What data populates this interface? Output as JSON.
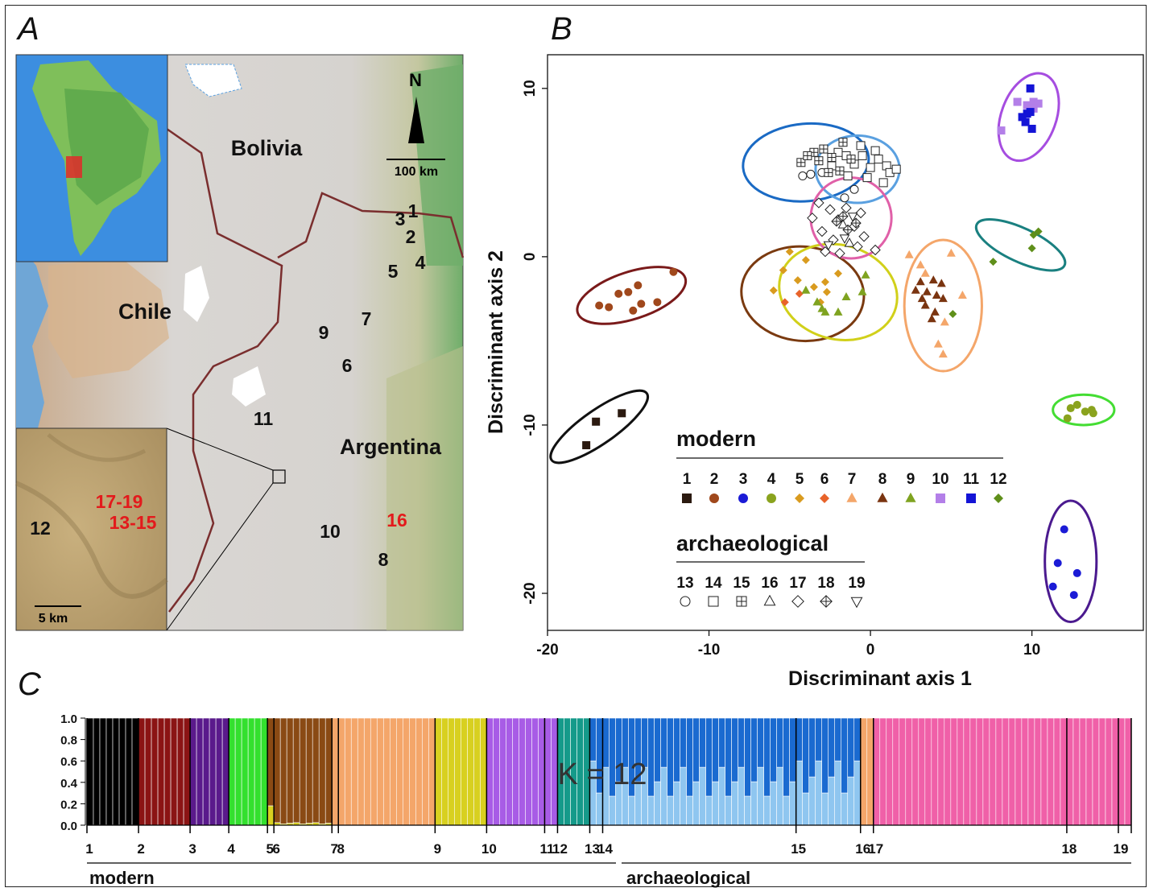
{
  "panels": {
    "a": "A",
    "b": "B",
    "c": "C"
  },
  "map": {
    "countries": [
      "Bolivia",
      "Chile",
      "Argentina"
    ],
    "north": "N",
    "scale": "100 km",
    "inset_scale": "5 km",
    "sites_black": [
      {
        "id": "1",
        "x": 513,
        "y": 270
      },
      {
        "id": "3",
        "x": 497,
        "y": 280
      },
      {
        "id": "2",
        "x": 510,
        "y": 302
      },
      {
        "id": "4",
        "x": 522,
        "y": 334
      },
      {
        "id": "5",
        "x": 488,
        "y": 345
      },
      {
        "id": "7",
        "x": 455,
        "y": 404
      },
      {
        "id": "9",
        "x": 402,
        "y": 421
      },
      {
        "id": "6",
        "x": 431,
        "y": 462
      },
      {
        "id": "11",
        "x": 327,
        "y": 528
      },
      {
        "id": "10",
        "x": 410,
        "y": 668
      },
      {
        "id": "8",
        "x": 476,
        "y": 703
      }
    ],
    "sites_red": [
      {
        "id": "16",
        "x": 493,
        "y": 654
      }
    ],
    "inset_black": [
      {
        "id": "12",
        "x": 50,
        "y": 664
      }
    ],
    "inset_red": [
      {
        "id": "17-19",
        "x": 148,
        "y": 631
      },
      {
        "id": "13-15",
        "x": 165,
        "y": 657
      }
    ],
    "colors": {
      "labels_red": "#e31a1c",
      "border": "#7a2e2e"
    }
  },
  "chart_data": [
    {
      "type": "scatter",
      "xlabel": "Discriminant axis 1",
      "ylabel": "Discriminant axis 2",
      "xlim": [
        -20,
        16.9
      ],
      "ylim": [
        -22.2,
        12.0
      ],
      "xticks": [
        "-20",
        "-10",
        "0",
        "10"
      ],
      "yticks": [
        "10",
        "0",
        "-10",
        "-20"
      ],
      "legend": {
        "modern_title": "modern",
        "archaeological_title": "archaeological",
        "modern": [
          {
            "label": "1",
            "shape": "square",
            "color": "#2b1a10"
          },
          {
            "label": "2",
            "shape": "circle",
            "color": "#a0481c"
          },
          {
            "label": "3",
            "shape": "circle",
            "color": "#1b1bd6"
          },
          {
            "label": "4",
            "shape": "circle",
            "color": "#8aa31e"
          },
          {
            "label": "5",
            "shape": "diamond",
            "color": "#d99b1f"
          },
          {
            "label": "6",
            "shape": "diamond",
            "color": "#e8632a"
          },
          {
            "label": "7",
            "shape": "triangle",
            "color": "#f4a66a"
          },
          {
            "label": "8",
            "shape": "triangle",
            "color": "#7a3410"
          },
          {
            "label": "9",
            "shape": "triangle",
            "color": "#7fa320"
          },
          {
            "label": "10",
            "shape": "square",
            "color": "#b37fe8"
          },
          {
            "label": "11",
            "shape": "square",
            "color": "#1414d6"
          },
          {
            "label": "12",
            "shape": "diamond",
            "color": "#5f8f1a"
          }
        ],
        "archaeological": [
          {
            "label": "13",
            "shape": "open-circle"
          },
          {
            "label": "14",
            "shape": "open-square"
          },
          {
            "label": "15",
            "shape": "boxplus"
          },
          {
            "label": "16",
            "shape": "open-triangle"
          },
          {
            "label": "17",
            "shape": "open-diamond"
          },
          {
            "label": "18",
            "shape": "diamond-plus"
          },
          {
            "label": "19",
            "shape": "open-triangle-down"
          }
        ]
      },
      "ellipses": [
        {
          "group": "1",
          "color": "#111111",
          "cx": -16.8,
          "cy": -10.1,
          "rx": 3.6,
          "ry": 1.0,
          "angle": 35
        },
        {
          "group": "2",
          "color": "#7a1a1a",
          "cx": -14.8,
          "cy": -2.3,
          "rx": 3.5,
          "ry": 1.4,
          "angle": 18
        },
        {
          "group": "3",
          "color": "#4b1a8f",
          "cx": 12.4,
          "cy": -18.1,
          "rx": 1.6,
          "ry": 3.6,
          "angle": 0
        },
        {
          "group": "4",
          "color": "#44dd33",
          "cx": 13.2,
          "cy": -9.1,
          "rx": 1.9,
          "ry": 0.9,
          "angle": 0
        },
        {
          "group": "5/6",
          "color": "#7a3a10",
          "cx": -4.2,
          "cy": -2.2,
          "rx": 3.8,
          "ry": 2.8,
          "angle": -5
        },
        {
          "group": "9",
          "color": "#d1d01a",
          "cx": -2.0,
          "cy": -2.1,
          "rx": 3.7,
          "ry": 2.8,
          "angle": -15
        },
        {
          "group": "7/8",
          "color": "#f4a66a",
          "cx": 4.5,
          "cy": -2.9,
          "rx": 2.4,
          "ry": 3.9,
          "angle": 0
        },
        {
          "group": "10/11",
          "color": "#a64de0",
          "cx": 9.8,
          "cy": 8.3,
          "rx": 1.7,
          "ry": 2.7,
          "angle": -20
        },
        {
          "group": "12",
          "color": "#1a8080",
          "cx": 9.3,
          "cy": 0.7,
          "rx": 3.0,
          "ry": 1.0,
          "angle": -25
        },
        {
          "group": "14/15",
          "color": "#1a6ac4",
          "cx": -4.0,
          "cy": 5.6,
          "rx": 3.9,
          "ry": 2.3,
          "angle": 5
        },
        {
          "group": "14",
          "color": "#5aa0e0",
          "cx": -0.8,
          "cy": 5.2,
          "rx": 2.6,
          "ry": 2.0,
          "angle": 0
        },
        {
          "group": "16-19",
          "color": "#e060a8",
          "cx": -1.2,
          "cy": 2.3,
          "rx": 2.5,
          "ry": 2.4,
          "angle": 0
        }
      ],
      "points": [
        {
          "g": 1,
          "x": -17.6,
          "y": -11.2
        },
        {
          "g": 1,
          "x": -17.0,
          "y": -9.8
        },
        {
          "g": 1,
          "x": -15.4,
          "y": -9.3
        },
        {
          "g": 2,
          "x": -16.8,
          "y": -2.9
        },
        {
          "g": 2,
          "x": -16.2,
          "y": -3.0
        },
        {
          "g": 2,
          "x": -15.6,
          "y": -2.2
        },
        {
          "g": 2,
          "x": -15.0,
          "y": -2.1
        },
        {
          "g": 2,
          "x": -14.7,
          "y": -3.2
        },
        {
          "g": 2,
          "x": -14.2,
          "y": -2.8
        },
        {
          "g": 2,
          "x": -14.4,
          "y": -1.7
        },
        {
          "g": 2,
          "x": -13.2,
          "y": -2.7
        },
        {
          "g": 2,
          "x": -12.2,
          "y": -0.9
        },
        {
          "g": 3,
          "x": 12.0,
          "y": -16.2
        },
        {
          "g": 3,
          "x": 11.6,
          "y": -18.2
        },
        {
          "g": 3,
          "x": 11.3,
          "y": -19.6
        },
        {
          "g": 3,
          "x": 12.8,
          "y": -18.8
        },
        {
          "g": 3,
          "x": 12.6,
          "y": -20.1
        },
        {
          "g": 4,
          "x": 12.2,
          "y": -9.6
        },
        {
          "g": 4,
          "x": 12.4,
          "y": -9.0
        },
        {
          "g": 4,
          "x": 12.8,
          "y": -8.8
        },
        {
          "g": 4,
          "x": 13.3,
          "y": -9.2
        },
        {
          "g": 4,
          "x": 13.7,
          "y": -9.1
        },
        {
          "g": 4,
          "x": 13.8,
          "y": -9.3
        },
        {
          "g": 5,
          "x": -6.0,
          "y": -2.0
        },
        {
          "g": 5,
          "x": -5.4,
          "y": -0.8
        },
        {
          "g": 5,
          "x": -4.5,
          "y": -1.4
        },
        {
          "g": 5,
          "x": -3.5,
          "y": -1.8
        },
        {
          "g": 5,
          "x": -4.0,
          "y": -0.2
        },
        {
          "g": 5,
          "x": -3.1,
          "y": -2.7
        },
        {
          "g": 5,
          "x": -2.0,
          "y": -1.0
        },
        {
          "g": 5,
          "x": -2.8,
          "y": -1.5
        },
        {
          "g": 5,
          "x": -5.0,
          "y": 0.3
        },
        {
          "g": 5,
          "x": -2.7,
          "y": -2.1
        },
        {
          "g": 6,
          "x": -5.3,
          "y": -2.7
        },
        {
          "g": 6,
          "x": -4.4,
          "y": -2.2
        },
        {
          "g": 7,
          "x": 2.4,
          "y": 0.1
        },
        {
          "g": 7,
          "x": 3.1,
          "y": -0.5
        },
        {
          "g": 7,
          "x": 5.0,
          "y": 0.2
        },
        {
          "g": 7,
          "x": 5.7,
          "y": -2.3
        },
        {
          "g": 7,
          "x": 4.6,
          "y": -3.9
        },
        {
          "g": 7,
          "x": 4.2,
          "y": -5.2
        },
        {
          "g": 7,
          "x": 4.5,
          "y": -5.8
        },
        {
          "g": 7,
          "x": 3.4,
          "y": -1.0
        },
        {
          "g": 8,
          "x": 2.8,
          "y": -2.0
        },
        {
          "g": 8,
          "x": 3.1,
          "y": -1.5
        },
        {
          "g": 8,
          "x": 3.5,
          "y": -2.1
        },
        {
          "g": 8,
          "x": 3.9,
          "y": -1.4
        },
        {
          "g": 8,
          "x": 4.1,
          "y": -2.3
        },
        {
          "g": 8,
          "x": 3.4,
          "y": -2.9
        },
        {
          "g": 8,
          "x": 4.0,
          "y": -3.3
        },
        {
          "g": 8,
          "x": 3.8,
          "y": -3.7
        },
        {
          "g": 8,
          "x": 4.4,
          "y": -1.6
        },
        {
          "g": 8,
          "x": 4.5,
          "y": -2.5
        },
        {
          "g": 8,
          "x": 3.2,
          "y": -2.5
        },
        {
          "g": 9,
          "x": -4.0,
          "y": -2.0
        },
        {
          "g": 9,
          "x": -3.3,
          "y": -2.7
        },
        {
          "g": 9,
          "x": -2.8,
          "y": -3.3
        },
        {
          "g": 9,
          "x": -1.5,
          "y": -2.4
        },
        {
          "g": 9,
          "x": -0.3,
          "y": -1.1
        },
        {
          "g": 9,
          "x": -0.5,
          "y": -2.1
        },
        {
          "g": 9,
          "x": -2.0,
          "y": -3.3
        },
        {
          "g": 9,
          "x": -3.0,
          "y": -3.1
        },
        {
          "g": 10,
          "x": 8.1,
          "y": 7.5
        },
        {
          "g": 10,
          "x": 9.1,
          "y": 9.2
        },
        {
          "g": 10,
          "x": 9.7,
          "y": 9.0
        },
        {
          "g": 10,
          "x": 10.1,
          "y": 9.2
        },
        {
          "g": 10,
          "x": 10.4,
          "y": 9.1
        },
        {
          "g": 10,
          "x": 10.1,
          "y": 8.8
        },
        {
          "g": 11,
          "x": 9.4,
          "y": 8.3
        },
        {
          "g": 11,
          "x": 9.6,
          "y": 8.0
        },
        {
          "g": 11,
          "x": 9.9,
          "y": 8.6
        },
        {
          "g": 11,
          "x": 9.9,
          "y": 10.0
        },
        {
          "g": 11,
          "x": 10.0,
          "y": 7.6
        },
        {
          "g": 11,
          "x": 9.7,
          "y": 8.5
        },
        {
          "g": 12,
          "x": 7.6,
          "y": -0.3
        },
        {
          "g": 12,
          "x": 10.0,
          "y": 0.5
        },
        {
          "g": 12,
          "x": 10.1,
          "y": 1.3
        },
        {
          "g": 12,
          "x": 10.4,
          "y": 1.5
        },
        {
          "g": 12,
          "x": 5.1,
          "y": -3.4
        },
        {
          "g": 13,
          "x": -4.2,
          "y": 4.8
        },
        {
          "g": 13,
          "x": -3.7,
          "y": 4.9
        },
        {
          "g": 13,
          "x": -3.0,
          "y": 5.0
        },
        {
          "g": 13,
          "x": -1.6,
          "y": 3.5
        },
        {
          "g": 13,
          "x": -1.0,
          "y": 4.0
        },
        {
          "g": 14,
          "x": -2.0,
          "y": 6.2
        },
        {
          "g": 14,
          "x": -1.5,
          "y": 6.0
        },
        {
          "g": 14,
          "x": -1.0,
          "y": 5.5
        },
        {
          "g": 14,
          "x": -0.5,
          "y": 6.0
        },
        {
          "g": 14,
          "x": 0.0,
          "y": 5.3
        },
        {
          "g": 14,
          "x": 0.5,
          "y": 5.8
        },
        {
          "g": 14,
          "x": 1.0,
          "y": 5.4
        },
        {
          "g": 14,
          "x": -0.6,
          "y": 6.6
        },
        {
          "g": 14,
          "x": 0.8,
          "y": 4.4
        },
        {
          "g": 14,
          "x": 1.2,
          "y": 5.0
        },
        {
          "g": 14,
          "x": -0.2,
          "y": 4.7
        },
        {
          "g": 14,
          "x": -1.4,
          "y": 4.8
        },
        {
          "g": 14,
          "x": 0.3,
          "y": 6.3
        },
        {
          "g": 14,
          "x": 1.6,
          "y": 5.2
        },
        {
          "g": 14,
          "x": -2.4,
          "y": 5.4
        },
        {
          "g": 15,
          "x": -3.5,
          "y": 6.2
        },
        {
          "g": 15,
          "x": -2.9,
          "y": 6.4
        },
        {
          "g": 15,
          "x": -2.4,
          "y": 5.9
        },
        {
          "g": 15,
          "x": -1.9,
          "y": 5.1
        },
        {
          "g": 15,
          "x": -1.2,
          "y": 5.8
        },
        {
          "g": 15,
          "x": -4.3,
          "y": 5.6
        },
        {
          "g": 15,
          "x": -3.9,
          "y": 6.0
        },
        {
          "g": 15,
          "x": -2.6,
          "y": 5.0
        },
        {
          "g": 15,
          "x": -1.7,
          "y": 6.8
        },
        {
          "g": 15,
          "x": -3.2,
          "y": 5.7
        },
        {
          "g": 16,
          "x": -1.3,
          "y": 0.8
        },
        {
          "g": 16,
          "x": -1.7,
          "y": 1.9
        },
        {
          "g": 17,
          "x": -3.2,
          "y": 3.2
        },
        {
          "g": 17,
          "x": -2.5,
          "y": 2.8
        },
        {
          "g": 17,
          "x": -2.0,
          "y": 2.2
        },
        {
          "g": 17,
          "x": -1.5,
          "y": 2.9
        },
        {
          "g": 17,
          "x": -1.0,
          "y": 1.8
        },
        {
          "g": 17,
          "x": -0.6,
          "y": 2.6
        },
        {
          "g": 17,
          "x": -0.4,
          "y": 1.2
        },
        {
          "g": 17,
          "x": -3.6,
          "y": 2.3
        },
        {
          "g": 17,
          "x": -3.0,
          "y": 1.5
        },
        {
          "g": 17,
          "x": -2.3,
          "y": 1.0
        },
        {
          "g": 17,
          "x": -1.9,
          "y": 0.2
        },
        {
          "g": 17,
          "x": -0.8,
          "y": 0.6
        },
        {
          "g": 17,
          "x": 0.3,
          "y": 0.4
        },
        {
          "g": 17,
          "x": -2.8,
          "y": 0.3
        },
        {
          "g": 18,
          "x": -2.1,
          "y": 2.1
        },
        {
          "g": 18,
          "x": -1.4,
          "y": 1.6
        },
        {
          "g": 18,
          "x": -0.9,
          "y": 2.0
        },
        {
          "g": 18,
          "x": -1.7,
          "y": 2.4
        },
        {
          "g": 19,
          "x": -1.6,
          "y": 1.1
        },
        {
          "g": 19,
          "x": -1.1,
          "y": 2.4
        },
        {
          "g": 19,
          "x": -2.6,
          "y": 0.7
        }
      ]
    },
    {
      "type": "bar",
      "stacked": true,
      "annotation": "K = 12",
      "ylim": [
        0,
        1
      ],
      "yticks": [
        "1.0",
        "0.8",
        "0.6",
        "0.4",
        "0.2",
        "0.0"
      ],
      "group_labels": [
        "1",
        "2",
        "3",
        "4",
        "5",
        "6",
        "7",
        "8",
        "9",
        "10",
        "11",
        "12",
        "13",
        "14",
        "15",
        "16",
        "17",
        "18",
        "19"
      ],
      "group_titles": [
        "modern",
        "archaeological"
      ],
      "segments": [
        {
          "id": "1",
          "n": 8,
          "color": "#000000"
        },
        {
          "id": "2",
          "n": 8,
          "color": "#8b1414"
        },
        {
          "id": "3",
          "n": 6,
          "color": "#5a1a8c"
        },
        {
          "id": "4",
          "n": 6,
          "color": "#33e02e"
        },
        {
          "id": "5",
          "n": 1,
          "color": "#8a4a14",
          "minor": "#d8d020",
          "minor_frac": 0.18
        },
        {
          "id": "6",
          "n": 9,
          "color": "#8a4a14",
          "minor": "#d8d020",
          "minor_frac": 0.02
        },
        {
          "id": "7",
          "n": 1,
          "color": "#f4a66a"
        },
        {
          "id": "8",
          "n": 15,
          "color": "#f4a66a"
        },
        {
          "id": "9",
          "n": 8,
          "color": "#d8d020"
        },
        {
          "id": "10",
          "n": 9,
          "color": "#a85ce6"
        },
        {
          "id": "11",
          "n": 2,
          "color": "#a85ce6"
        },
        {
          "id": "12",
          "n": 5,
          "color": "#159a8a"
        },
        {
          "id": "13",
          "n": 2,
          "color": "#1a6ad0",
          "minor": "#8fc6f0",
          "minor_frac": 0.5
        },
        {
          "id": "14",
          "n": 30,
          "color": "#1a6ad0",
          "minor": "#8fc6f0",
          "minor_frac": 0.45
        },
        {
          "id": "15",
          "n": 10,
          "color": "#1a6ad0",
          "minor": "#8fc6f0",
          "minor_frac": 0.5
        },
        {
          "id": "16",
          "n": 2,
          "color": "#f4a66a"
        },
        {
          "id": "17",
          "n": 30,
          "color": "#f060a8"
        },
        {
          "id": "18",
          "n": 8,
          "color": "#f060a8"
        },
        {
          "id": "19",
          "n": 2,
          "color": "#f060a8"
        }
      ]
    }
  ]
}
